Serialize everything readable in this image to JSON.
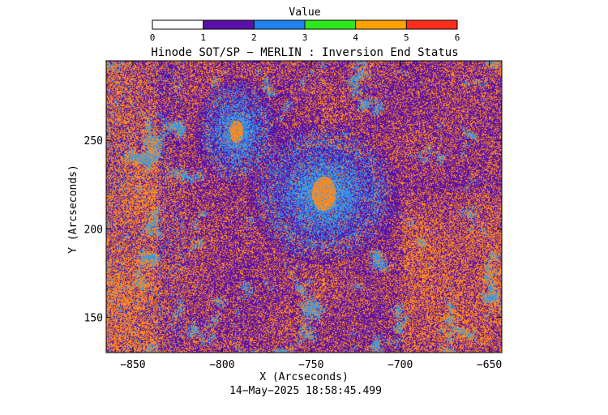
{
  "chart_data": {
    "type": "heatmap",
    "title": "Hinode SOT/SP − MERLIN : Inversion End Status",
    "xlabel": "X (Arcseconds)",
    "ylabel": "Y (Arcseconds)",
    "timestamp": "14−May−2025 18:58:45.499",
    "xlim": [
      -865,
      -643
    ],
    "ylim": [
      130,
      295
    ],
    "x_ticks": [
      -850,
      -800,
      -750,
      -700,
      -650
    ],
    "x_tick_labels": [
      "−850",
      "−800",
      "−750",
      "−700",
      "−650"
    ],
    "y_ticks": [
      150,
      200,
      250
    ],
    "y_tick_labels": [
      "150",
      "200",
      "250"
    ],
    "colorbar": {
      "label": "Value",
      "range": [
        0,
        6
      ],
      "tick_labels": [
        "0",
        "1",
        "2",
        "3",
        "4",
        "5",
        "6"
      ],
      "bins": [
        {
          "from": 0,
          "to": 1,
          "color": "#ffffff"
        },
        {
          "from": 1,
          "to": 2,
          "color": "#5a10a8"
        },
        {
          "from": 2,
          "to": 3,
          "color": "#1f82f0"
        },
        {
          "from": 3,
          "to": 4,
          "color": "#2ee81e"
        },
        {
          "from": 4,
          "to": 5,
          "color": "#ffa200"
        },
        {
          "from": 5,
          "to": 6,
          "color": "#ff2e1a"
        }
      ]
    },
    "map_colors": {
      "purple": "#5a10a8",
      "orange": "#ff8a1f",
      "blue": "#2f98ec"
    },
    "features": [
      {
        "x": -743,
        "y": 220,
        "value": 4.5
      },
      {
        "x": -792,
        "y": 255,
        "value": 4.5
      }
    ],
    "grid": false
  }
}
